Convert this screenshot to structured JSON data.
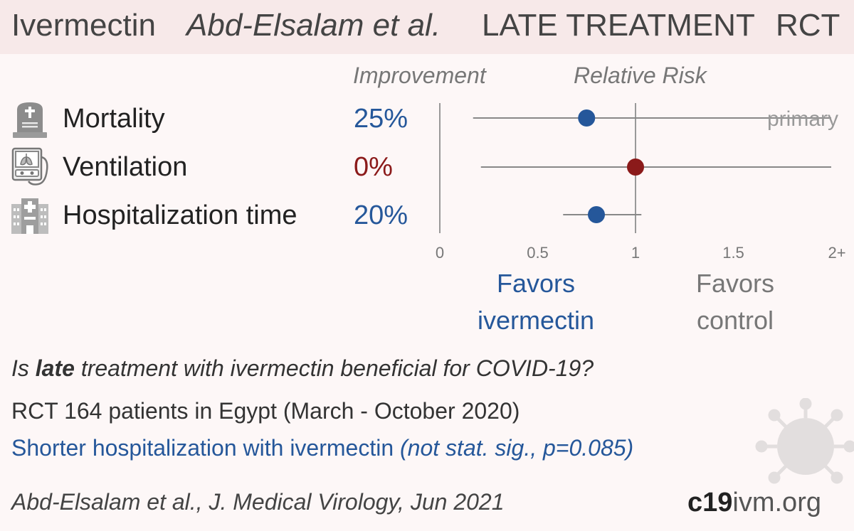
{
  "header": {
    "drug": "Ivermectin",
    "study": "Abd-Elsalam et al.",
    "stage": "LATE TREATMENT",
    "design": "RCT"
  },
  "columns": {
    "improvement": "Improvement",
    "relative_risk": "Relative Risk"
  },
  "outcomes": [
    {
      "name": "Mortality",
      "improvement": "25%",
      "icon": "tombstone-icon",
      "improvement_color": "#25579a"
    },
    {
      "name": "Ventilation",
      "improvement": "0%",
      "icon": "ventilator-icon",
      "improvement_color": "#8b1a1a"
    },
    {
      "name": "Hospitalization time",
      "improvement": "20%",
      "icon": "hospital-icon",
      "improvement_color": "#25579a"
    }
  ],
  "chart_data": {
    "type": "scatter",
    "x_axis": {
      "ticks": [
        "0",
        "0.5",
        "1",
        "1.5",
        "2+"
      ],
      "range": [
        0,
        2
      ]
    },
    "reference_line": 1,
    "series": [
      {
        "label": "Mortality",
        "rr": 0.75,
        "ci_low": 0.17,
        "ci_high": 2.0,
        "color": "#25579a",
        "tag": "primary"
      },
      {
        "label": "Ventilation",
        "rr": 1.0,
        "ci_low": 0.21,
        "ci_high": 2.0,
        "color": "#8b1a1a"
      },
      {
        "label": "Hospitalization time",
        "rr": 0.8,
        "ci_low": 0.63,
        "ci_high": 1.03,
        "color": "#25579a"
      }
    ]
  },
  "favors": {
    "ivermectin_line1": "Favors",
    "ivermectin_line2": "ivermectin",
    "control_line1": "Favors",
    "control_line2": "control"
  },
  "summary": {
    "question_pre": "Is ",
    "question_bold": "late",
    "question_post": " treatment with ivermectin beneficial for COVID-19?",
    "study": "RCT 164 patients in Egypt (March - October 2020)",
    "conclusion_main": "Shorter hospitalization with ivermectin ",
    "conclusion_note": "(not stat. sig., p=0.085)",
    "citation": "Abd-Elsalam et al., J. Medical Virology, Jun 2021"
  },
  "logo": {
    "bold": "c19",
    "rest": "ivm.org"
  },
  "colors": {
    "benefit": "#25579a",
    "harm": "#8b1a1a",
    "neutral": "#777777"
  }
}
